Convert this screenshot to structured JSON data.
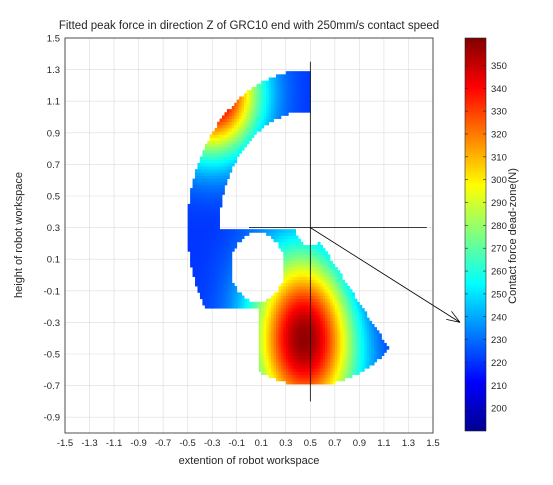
{
  "chart_data": {
    "type": "heatmap",
    "title": "Fitted peak force in direction Z of GRC10 end with 250mm/s contact speed",
    "xlabel": "extention of robot workspace",
    "ylabel": "height of robot workspace",
    "xlim": [
      -1.5,
      1.5
    ],
    "ylim": [
      -1.0,
      1.5
    ],
    "x_ticks": [
      "-1.5",
      "-1.3",
      "-1.1",
      "-0.9",
      "-0.7",
      "-0.5",
      "-0.3",
      "-0.1",
      "0.1",
      "0.3",
      "0.5",
      "0.7",
      "0.9",
      "1.1",
      "1.3",
      "1.5"
    ],
    "y_ticks": [
      "1.5",
      "1.3",
      "1.1",
      "0.9",
      "0.7",
      "0.5",
      "0.3",
      "0.1",
      "-0.1",
      "-0.3",
      "-0.5",
      "-0.7",
      "-0.9"
    ],
    "grid": true,
    "colorbar": {
      "label": "Contact force dead-zone(N)",
      "range": [
        190,
        362
      ],
      "ticks": [
        "350",
        "340",
        "330",
        "320",
        "310",
        "300",
        "290",
        "280",
        "270",
        "260",
        "250",
        "240",
        "230",
        "220",
        "210",
        "200"
      ],
      "colormap": "jet"
    },
    "workspace": {
      "base": [
        0.5,
        0.3
      ],
      "outer_radius": 1.0,
      "inner_radius": 0.74,
      "hole_center": [
        0.07,
        0.05
      ],
      "hole_radius": 0.22,
      "field": {
        "upper_lobe": {
          "center": [
            -0.3,
            1.15
          ],
          "max_value": 362
        },
        "lower_lobe": {
          "center": [
            0.45,
            -0.4
          ],
          "max_value": 362
        },
        "right_side": {
          "center": [
            1.15,
            0.2
          ],
          "min_value": 200
        }
      }
    },
    "crosshair": {
      "x": 0.5,
      "y": 0.3,
      "x_span": [
        0.0,
        1.45
      ],
      "y_span": [
        -0.8,
        1.35
      ]
    },
    "pointer_line": {
      "from": [
        0.5,
        0.3
      ],
      "to": [
        1.72,
        -0.3
      ]
    }
  }
}
